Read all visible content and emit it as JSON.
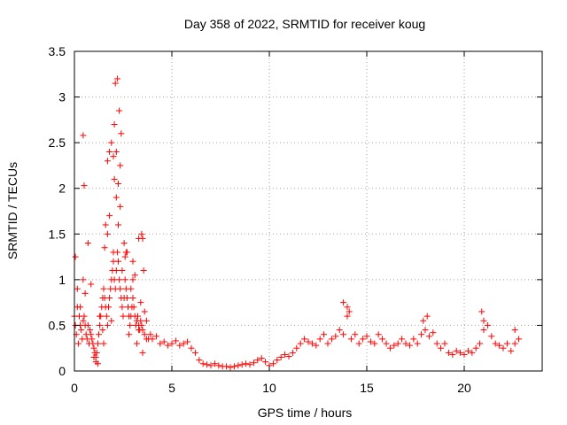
{
  "chart_data": {
    "type": "scatter",
    "title": "Day 358 of 2022, SRMTID for receiver koug",
    "xlabel": "GPS time / hours",
    "ylabel": "SRMTID / TECUs",
    "xlim": [
      0,
      24
    ],
    "ylim": [
      0,
      3.5
    ],
    "xticks": [
      0,
      5,
      10,
      15,
      20
    ],
    "xtick_labels": [
      "0",
      "5",
      "10",
      "15",
      "20"
    ],
    "yticks": [
      0,
      0.5,
      1,
      1.5,
      2,
      2.5,
      3,
      3.5
    ],
    "ytick_labels": [
      "0",
      "0.5",
      "1",
      "1.5",
      "2",
      "2.5",
      "3",
      "3.5"
    ],
    "grid": true,
    "marker": "plus",
    "series": [
      {
        "name": "SRMTID",
        "color": "#ff0000",
        "x": [
          0.0,
          0.05,
          0.1,
          0.15,
          0.2,
          0.25,
          0.3,
          0.35,
          0.4,
          0.45,
          0.5,
          0.55,
          0.6,
          0.65,
          0.7,
          0.75,
          0.8,
          0.85,
          0.9,
          0.95,
          1.0,
          1.05,
          1.1,
          1.15,
          1.2,
          1.25,
          1.3,
          1.35,
          1.4,
          1.45,
          1.5,
          1.55,
          1.6,
          1.65,
          1.7,
          1.75,
          1.8,
          1.85,
          1.9,
          1.95,
          2.0,
          2.05,
          2.1,
          2.15,
          2.2,
          2.25,
          2.3,
          2.35,
          2.4,
          2.45,
          2.5,
          2.55,
          2.6,
          2.65,
          2.7,
          2.75,
          2.8,
          2.85,
          2.9,
          2.95,
          3.0,
          3.05,
          3.1,
          3.15,
          3.2,
          3.25,
          3.3,
          3.35,
          3.4,
          3.45,
          3.5,
          3.6,
          3.7,
          3.8,
          3.9,
          4.0,
          4.2,
          4.4,
          4.6,
          4.8,
          5.0,
          5.2,
          5.4,
          5.6,
          5.8,
          6.0,
          6.2,
          6.4,
          6.6,
          6.8,
          7.0,
          7.2,
          7.4,
          7.6,
          7.8,
          8.0,
          8.2,
          8.4,
          8.6,
          8.8,
          9.0,
          9.2,
          9.4,
          9.6,
          9.8,
          10.0,
          10.2,
          10.4,
          10.6,
          10.8,
          11.0,
          11.2,
          11.4,
          11.6,
          11.8,
          12.0,
          12.2,
          12.4,
          12.6,
          12.8,
          13.0,
          13.2,
          13.4,
          13.6,
          13.8,
          14.0,
          14.2,
          14.4,
          14.6,
          14.8,
          15.0,
          15.2,
          15.4,
          15.6,
          15.8,
          16.0,
          16.2,
          16.4,
          16.6,
          16.8,
          17.0,
          17.2,
          17.4,
          17.6,
          17.8,
          18.0,
          18.2,
          18.4,
          18.6,
          18.8,
          19.0,
          19.2,
          19.4,
          19.6,
          19.8,
          20.0,
          20.2,
          20.4,
          20.6,
          20.8,
          21.0,
          21.2,
          21.4,
          21.6,
          21.8,
          22.0,
          22.2,
          22.4,
          22.6,
          22.8,
          0.05,
          0.15,
          0.3,
          0.45,
          0.55,
          0.7,
          0.85,
          1.0,
          1.1,
          1.2,
          1.3,
          1.45,
          1.55,
          1.6,
          1.7,
          1.8,
          1.9,
          2.0,
          2.05,
          2.15,
          2.25,
          2.35,
          2.45,
          2.55,
          2.65,
          2.8,
          2.9,
          3.0,
          3.1,
          3.2,
          3.3,
          3.4,
          3.5,
          3.6,
          3.7,
          2.1,
          2.2,
          2.3,
          2.4,
          1.9,
          2.0,
          0.45,
          0.5,
          1.7,
          1.8,
          2.05,
          2.15,
          2.25,
          2.35,
          3.45,
          3.5,
          3.55,
          1.5,
          2.6,
          2.7,
          3.0,
          3.3,
          13.8,
          14.0,
          14.1,
          17.9,
          18.1,
          20.9,
          21.0,
          22.6
        ],
        "y": [
          0.6,
          0.5,
          0.4,
          0.7,
          0.3,
          0.6,
          0.5,
          0.45,
          0.35,
          0.55,
          0.6,
          0.5,
          0.4,
          0.35,
          0.5,
          0.3,
          0.45,
          0.4,
          0.35,
          0.3,
          0.25,
          0.2,
          0.15,
          0.2,
          0.3,
          0.4,
          0.5,
          0.6,
          0.7,
          0.8,
          0.9,
          0.8,
          0.7,
          0.6,
          0.5,
          0.7,
          0.8,
          0.9,
          1.0,
          1.1,
          1.2,
          1.0,
          0.9,
          1.1,
          1.3,
          1.2,
          1.0,
          0.9,
          0.8,
          0.7,
          0.6,
          0.8,
          1.0,
          0.9,
          0.8,
          0.7,
          0.6,
          0.5,
          0.6,
          0.7,
          0.8,
          0.7,
          0.6,
          0.5,
          0.55,
          0.6,
          0.5,
          0.45,
          0.55,
          0.5,
          0.45,
          0.4,
          0.35,
          0.35,
          0.4,
          0.35,
          0.38,
          0.3,
          0.32,
          0.28,
          0.3,
          0.33,
          0.28,
          0.3,
          0.32,
          0.25,
          0.2,
          0.12,
          0.08,
          0.07,
          0.06,
          0.08,
          0.06,
          0.05,
          0.05,
          0.04,
          0.05,
          0.06,
          0.07,
          0.08,
          0.07,
          0.09,
          0.12,
          0.14,
          0.1,
          0.06,
          0.08,
          0.12,
          0.15,
          0.18,
          0.16,
          0.2,
          0.25,
          0.3,
          0.35,
          0.32,
          0.3,
          0.28,
          0.35,
          0.4,
          0.3,
          0.35,
          0.38,
          0.45,
          0.4,
          0.6,
          0.35,
          0.4,
          0.3,
          0.35,
          0.38,
          0.32,
          0.3,
          0.4,
          0.35,
          0.3,
          0.25,
          0.28,
          0.3,
          0.35,
          0.3,
          0.28,
          0.35,
          0.3,
          0.4,
          0.45,
          0.38,
          0.42,
          0.3,
          0.25,
          0.3,
          0.2,
          0.18,
          0.22,
          0.2,
          0.18,
          0.22,
          0.2,
          0.25,
          0.3,
          0.45,
          0.5,
          0.38,
          0.3,
          0.28,
          0.25,
          0.3,
          0.22,
          0.3,
          0.35,
          1.25,
          0.9,
          0.7,
          1.0,
          0.85,
          1.4,
          0.95,
          0.15,
          0.1,
          0.08,
          0.6,
          0.45,
          1.35,
          1.6,
          1.5,
          1.7,
          0.55,
          1.3,
          2.1,
          2.4,
          1.6,
          1.8,
          1.1,
          1.4,
          1.3,
          0.4,
          0.9,
          1.2,
          1.05,
          0.3,
          0.45,
          0.75,
          0.2,
          0.65,
          0.55,
          3.15,
          3.2,
          2.85,
          2.6,
          2.5,
          2.35,
          2.58,
          2.03,
          2.3,
          2.4,
          2.7,
          1.9,
          2.05,
          2.25,
          1.5,
          1.45,
          1.1,
          0.3,
          1.25,
          1.3,
          1.0,
          1.45,
          0.75,
          0.7,
          0.65,
          0.55,
          0.6,
          0.65,
          0.55,
          0.45
        ]
      }
    ]
  }
}
